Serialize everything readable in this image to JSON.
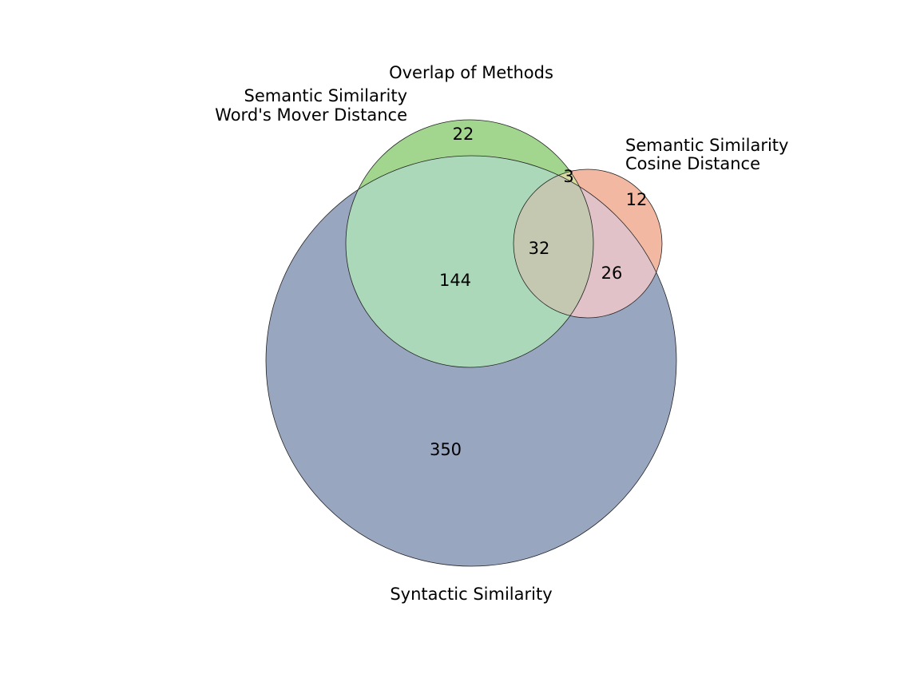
{
  "chart_data": {
    "type": "venn",
    "title": "Overlap of Methods",
    "sets": [
      {
        "id": "wmd",
        "label_lines": [
          "Semantic Similarity",
          "Word's Mover Distance"
        ],
        "color": "#a2d68f"
      },
      {
        "id": "cos",
        "label_lines": [
          "Semantic Similarity",
          "Cosine Distance"
        ],
        "color": "#f2b8a2"
      },
      {
        "id": "syn",
        "label_lines": [
          "Syntactic Similarity"
        ],
        "color": "#98a6c0"
      }
    ],
    "regions": [
      {
        "sets": [
          "wmd"
        ],
        "count": 22
      },
      {
        "sets": [
          "wmd",
          "cos"
        ],
        "count": 3
      },
      {
        "sets": [
          "cos"
        ],
        "count": 12
      },
      {
        "sets": [
          "wmd",
          "cos",
          "syn"
        ],
        "count": 32
      },
      {
        "sets": [
          "wmd",
          "syn"
        ],
        "count": 144
      },
      {
        "sets": [
          "cos",
          "syn"
        ],
        "count": 26
      },
      {
        "sets": [
          "syn"
        ],
        "count": 350
      }
    ],
    "overlap_colors": {
      "wmd_syn": "#aad8b8",
      "cos_syn": "#e1c2c8",
      "wmd_cos_syn": "#c5c8b0",
      "wmd_cos": "#d8dca0"
    }
  }
}
